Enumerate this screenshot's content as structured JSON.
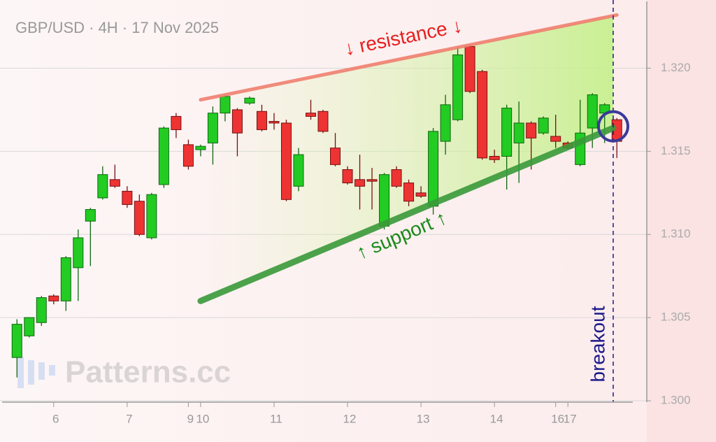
{
  "chart_data": {
    "type": "candlestick",
    "title": "GBP/USD · 4H · 17 Nov 2025",
    "watermark": "Patterns.cc",
    "up_color": "#22cc22",
    "down_color": "#ee3333",
    "grid": true,
    "xlim": [
      -1.1,
      50.3
    ],
    "ylim": [
      1.3,
      1.3241
    ],
    "yticks": [
      {
        "value": 1.3,
        "label": "1.300"
      },
      1.305,
      {
        "value": 1.31,
        "label": "1.310"
      },
      1.315,
      {
        "value": 1.32,
        "label": "1.320"
      }
    ],
    "xticks": [
      {
        "value": 3,
        "label": "6"
      },
      {
        "value": 9,
        "label": "7"
      },
      {
        "value": 14,
        "label": "9"
      },
      {
        "value": 15,
        "label": "10"
      },
      {
        "value": 21,
        "label": "11"
      },
      {
        "value": 27,
        "label": "12"
      },
      {
        "value": 33,
        "label": "13"
      },
      {
        "value": 39,
        "label": "14"
      },
      {
        "value": 44,
        "label": "16"
      },
      {
        "value": 45,
        "label": "17"
      }
    ],
    "open": [
      1.3026,
      1.3039,
      1.3047,
      1.3063,
      1.306,
      1.308,
      1.3108,
      1.3122,
      1.3133,
      1.3126,
      1.312,
      1.3098,
      1.313,
      1.3171,
      1.3154,
      1.3151,
      1.3155,
      1.3173,
      1.3175,
      1.3179,
      1.3174,
      1.3168,
      1.3167,
      1.3129,
      1.3173,
      1.3174,
      1.3152,
      1.3139,
      1.3133,
      1.3133,
      1.3105,
      1.3139,
      1.3131,
      1.3125,
      1.3117,
      1.3156,
      1.3169,
      1.3213,
      1.3198,
      1.3147,
      1.3147,
      1.3155,
      1.3167,
      1.3161,
      1.3159,
      1.3155,
      1.3142,
      1.3164,
      1.3173,
      1.3169
    ],
    "high": [
      1.3049,
      1.305,
      1.3063,
      1.3064,
      1.3087,
      1.3103,
      1.3116,
      1.3141,
      1.3142,
      1.3129,
      1.3124,
      1.3125,
      1.3165,
      1.3173,
      1.3157,
      1.3154,
      1.3177,
      1.3184,
      1.3176,
      1.3183,
      1.3178,
      1.3173,
      1.3169,
      1.3152,
      1.3181,
      1.3175,
      1.3161,
      1.3141,
      1.3148,
      1.314,
      1.3137,
      1.3141,
      1.3133,
      1.3129,
      1.3164,
      1.3184,
      1.3213,
      1.3214,
      1.3199,
      1.3151,
      1.3178,
      1.318,
      1.3168,
      1.3171,
      1.3172,
      1.3156,
      1.3181,
      1.3185,
      1.3179,
      1.317
    ],
    "low": [
      1.3014,
      1.3038,
      1.3045,
      1.3058,
      1.3054,
      1.306,
      1.3081,
      1.3121,
      1.3128,
      1.3116,
      1.3099,
      1.3097,
      1.3128,
      1.3158,
      1.3139,
      1.3147,
      1.3142,
      1.3168,
      1.3147,
      1.3178,
      1.3162,
      1.3163,
      1.312,
      1.3126,
      1.3169,
      1.3161,
      1.3141,
      1.313,
      1.3115,
      1.3115,
      1.3103,
      1.3128,
      1.3117,
      1.3122,
      1.3112,
      1.3148,
      1.3168,
      1.3185,
      1.3145,
      1.3143,
      1.3127,
      1.3131,
      1.3139,
      1.316,
      1.3152,
      1.3151,
      1.3141,
      1.3152,
      1.3155,
      1.3146
    ],
    "close": [
      1.3046,
      1.305,
      1.3062,
      1.306,
      1.3086,
      1.3098,
      1.3115,
      1.3136,
      1.3129,
      1.3118,
      1.31,
      1.3124,
      1.3164,
      1.3163,
      1.3141,
      1.3153,
      1.3173,
      1.3183,
      1.3161,
      1.3182,
      1.3163,
      1.3167,
      1.3121,
      1.3148,
      1.3171,
      1.3162,
      1.3142,
      1.3131,
      1.3129,
      1.3132,
      1.3136,
      1.3129,
      1.312,
      1.3123,
      1.3162,
      1.3178,
      1.3208,
      1.3186,
      1.3146,
      1.3145,
      1.3176,
      1.3167,
      1.3158,
      1.317,
      1.3156,
      1.3152,
      1.3161,
      1.3184,
      1.3178,
      1.3156
    ],
    "resistance": {
      "label": "↓ resistance ↓",
      "color": "#f08070",
      "x": [
        15,
        49
      ],
      "y": [
        1.3181,
        1.3232
      ]
    },
    "support": {
      "label": "↑ support ↑",
      "color": "#3a9a3a",
      "x": [
        15,
        48.7
      ],
      "y": [
        1.306,
        1.3164
      ]
    },
    "breakout": {
      "label": "breakout",
      "color": "#1a1a8a",
      "x": 48.7
    }
  }
}
